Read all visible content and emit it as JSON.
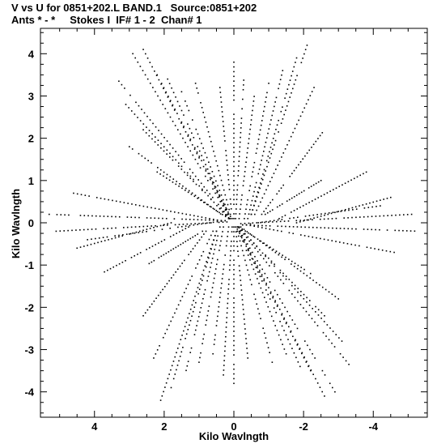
{
  "header": {
    "line1": "V vs U for 0851+202.L BAND.1   Source:0851+202",
    "line2": "Ants * - *     Stokes I  IF# 1 - 2  Chan# 1"
  },
  "chart_data": {
    "type": "scatter",
    "title": "V vs U for 0851+202.L BAND.1   Source:0851+202",
    "subtitle": "Ants * - *     Stokes I  IF# 1 - 2  Chan# 1",
    "xlabel": "Kilo Wavlngth",
    "ylabel": "Kilo Wavlngth",
    "xlim": [
      5.55,
      -5.55
    ],
    "ylim": [
      -4.6,
      4.6
    ],
    "x_ticks": [
      4,
      2,
      0,
      -2,
      -4
    ],
    "y_ticks": [
      4,
      3,
      2,
      1,
      0,
      -1,
      -2,
      -3,
      -4
    ],
    "x_tick_labels": [
      "4",
      "2",
      "0",
      "-2",
      "-4"
    ],
    "y_tick_labels": [
      "4",
      "3",
      "2",
      "1",
      "0",
      "-1",
      "-2",
      "-3",
      "-4"
    ],
    "grid": false,
    "legend": "none",
    "marker_color": "#000000",
    "tracks": [
      {
        "start": [
          0.1,
          0.1
        ],
        "end": [
          2.9,
          4.0
        ],
        "n": 40
      },
      {
        "start": [
          0.1,
          0.1
        ],
        "end": [
          2.6,
          4.1
        ],
        "n": 40
      },
      {
        "start": [
          0.1,
          0.15
        ],
        "end": [
          2.2,
          3.5
        ],
        "n": 34
      },
      {
        "start": [
          0.12,
          0.1
        ],
        "end": [
          1.9,
          3.4
        ],
        "n": 32
      },
      {
        "start": [
          0.1,
          0.1
        ],
        "end": [
          1.5,
          3.1
        ],
        "n": 28
      },
      {
        "start": [
          0.1,
          0.2
        ],
        "end": [
          1.1,
          3.3
        ],
        "n": 28
      },
      {
        "start": [
          0.12,
          0.1
        ],
        "end": [
          3.3,
          3.35
        ],
        "n": 40
      },
      {
        "start": [
          0.15,
          0.1
        ],
        "end": [
          3.1,
          2.8
        ],
        "n": 36
      },
      {
        "start": [
          0.15,
          0.12
        ],
        "end": [
          2.6,
          2.2
        ],
        "n": 30
      },
      {
        "start": [
          0.2,
          0.1
        ],
        "end": [
          3.0,
          1.8
        ],
        "n": 32
      },
      {
        "start": [
          0.15,
          0.1
        ],
        "end": [
          2.2,
          1.2
        ],
        "n": 24
      },
      {
        "start": [
          0.25,
          0.05
        ],
        "end": [
          5.3,
          0.2
        ],
        "n": 46
      },
      {
        "start": [
          0.25,
          0.03
        ],
        "end": [
          4.6,
          0.7
        ],
        "n": 40
      },
      {
        "start": [
          0.2,
          0.02
        ],
        "end": [
          5.1,
          -0.2
        ],
        "n": 44
      },
      {
        "start": [
          0.25,
          0.05
        ],
        "end": [
          4.2,
          -0.4
        ],
        "n": 36
      },
      {
        "start": [
          0.0,
          0.1
        ],
        "end": [
          0.0,
          3.8
        ],
        "n": 34
      },
      {
        "start": [
          -0.05,
          0.1
        ],
        "end": [
          -0.3,
          3.6
        ],
        "n": 32
      },
      {
        "start": [
          0.05,
          0.1
        ],
        "end": [
          0.4,
          3.2
        ],
        "n": 28
      },
      {
        "start": [
          -0.15,
          0.1
        ],
        "end": [
          -0.6,
          3.1
        ],
        "n": 28
      },
      {
        "start": [
          -0.3,
          0.1
        ],
        "end": [
          -1.0,
          3.3
        ],
        "n": 30
      },
      {
        "start": [
          -0.4,
          0.1
        ],
        "end": [
          -1.4,
          3.6
        ],
        "n": 34
      },
      {
        "start": [
          -0.5,
          0.2
        ],
        "end": [
          -1.8,
          3.9
        ],
        "n": 36
      },
      {
        "start": [
          -0.5,
          0.2
        ],
        "end": [
          -2.1,
          4.2
        ],
        "n": 40
      },
      {
        "start": [
          -0.6,
          0.2
        ],
        "end": [
          -2.3,
          3.2
        ],
        "n": 32
      },
      {
        "start": [
          -0.8,
          0.2
        ],
        "end": [
          -2.6,
          2.2
        ],
        "n": 30
      },
      {
        "start": [
          -0.9,
          0.2
        ],
        "end": [
          -2.5,
          1.0
        ],
        "n": 24
      },
      {
        "start": [
          -1.3,
          0.1
        ],
        "end": [
          -3.8,
          1.2
        ],
        "n": 30
      },
      {
        "start": [
          -1.8,
          0.0
        ],
        "end": [
          -4.5,
          0.6
        ],
        "n": 28
      },
      {
        "start": [
          -0.1,
          -0.1
        ],
        "end": [
          -2.9,
          -4.0
        ],
        "n": 40
      },
      {
        "start": [
          -0.1,
          -0.1
        ],
        "end": [
          -2.6,
          -4.1
        ],
        "n": 40
      },
      {
        "start": [
          -0.1,
          -0.15
        ],
        "end": [
          -2.2,
          -3.5
        ],
        "n": 34
      },
      {
        "start": [
          -0.12,
          -0.1
        ],
        "end": [
          -1.9,
          -3.4
        ],
        "n": 32
      },
      {
        "start": [
          -0.1,
          -0.1
        ],
        "end": [
          -1.5,
          -3.1
        ],
        "n": 28
      },
      {
        "start": [
          -0.1,
          -0.2
        ],
        "end": [
          -1.1,
          -3.3
        ],
        "n": 28
      },
      {
        "start": [
          -0.12,
          -0.1
        ],
        "end": [
          -3.3,
          -3.35
        ],
        "n": 40
      },
      {
        "start": [
          -0.15,
          -0.1
        ],
        "end": [
          -3.1,
          -2.8
        ],
        "n": 36
      },
      {
        "start": [
          -0.15,
          -0.12
        ],
        "end": [
          -2.6,
          -2.2
        ],
        "n": 30
      },
      {
        "start": [
          -0.2,
          -0.1
        ],
        "end": [
          -3.0,
          -1.8
        ],
        "n": 32
      },
      {
        "start": [
          -0.15,
          -0.1
        ],
        "end": [
          -2.2,
          -1.2
        ],
        "n": 24
      },
      {
        "start": [
          -0.25,
          -0.05
        ],
        "end": [
          -5.3,
          -0.2
        ],
        "n": 46
      },
      {
        "start": [
          -0.25,
          -0.03
        ],
        "end": [
          -4.6,
          -0.7
        ],
        "n": 40
      },
      {
        "start": [
          -0.2,
          -0.02
        ],
        "end": [
          -5.1,
          0.2
        ],
        "n": 44
      },
      {
        "start": [
          -0.25,
          -0.05
        ],
        "end": [
          -4.2,
          0.4
        ],
        "n": 36
      },
      {
        "start": [
          0.0,
          -0.1
        ],
        "end": [
          0.0,
          -3.8
        ],
        "n": 34
      },
      {
        "start": [
          0.05,
          -0.1
        ],
        "end": [
          0.3,
          -3.6
        ],
        "n": 32
      },
      {
        "start": [
          -0.05,
          -0.1
        ],
        "end": [
          -0.4,
          -3.2
        ],
        "n": 28
      },
      {
        "start": [
          0.15,
          -0.1
        ],
        "end": [
          0.6,
          -3.1
        ],
        "n": 28
      },
      {
        "start": [
          0.3,
          -0.1
        ],
        "end": [
          1.0,
          -3.3
        ],
        "n": 30
      },
      {
        "start": [
          0.4,
          -0.1
        ],
        "end": [
          1.4,
          -3.6
        ],
        "n": 34
      },
      {
        "start": [
          0.5,
          -0.2
        ],
        "end": [
          1.8,
          -3.9
        ],
        "n": 36
      },
      {
        "start": [
          0.5,
          -0.2
        ],
        "end": [
          2.1,
          -4.2
        ],
        "n": 40
      },
      {
        "start": [
          0.6,
          -0.2
        ],
        "end": [
          2.3,
          -3.2
        ],
        "n": 32
      },
      {
        "start": [
          0.8,
          -0.2
        ],
        "end": [
          2.6,
          -2.2
        ],
        "n": 30
      },
      {
        "start": [
          0.9,
          -0.2
        ],
        "end": [
          2.5,
          -1.0
        ],
        "n": 24
      },
      {
        "start": [
          1.3,
          -0.1
        ],
        "end": [
          3.8,
          -1.2
        ],
        "n": 30
      },
      {
        "start": [
          1.8,
          0.0
        ],
        "end": [
          4.5,
          -0.6
        ],
        "n": 28
      }
    ]
  }
}
